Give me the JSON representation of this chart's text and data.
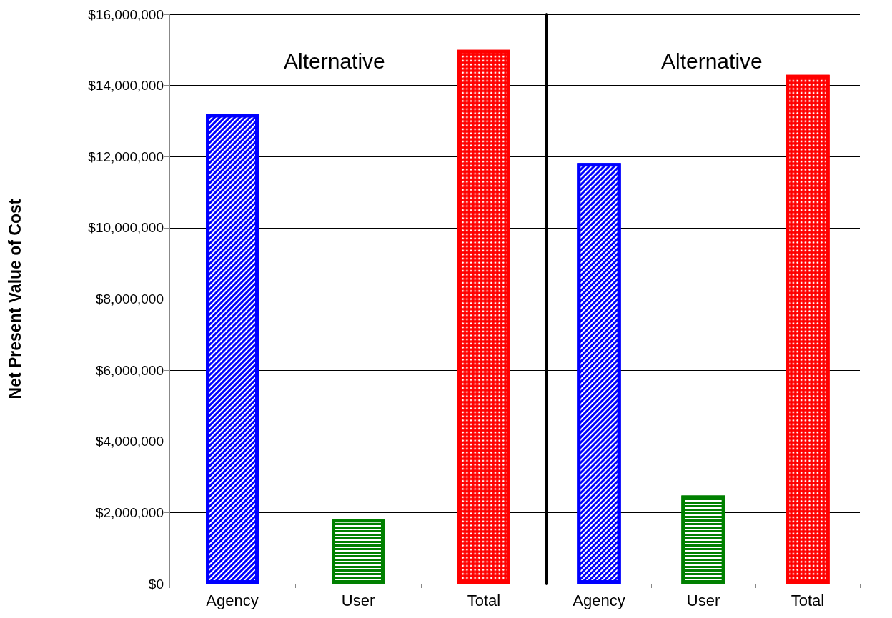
{
  "chart_data": [
    {
      "type": "bar",
      "ylabel": "Net Present Value of Cost",
      "annotations": [
        "Alternative"
      ],
      "categories": [
        "Agency",
        "User",
        "Total"
      ],
      "values": [
        13200000,
        1820000,
        15000000
      ],
      "colors": [
        "#0000ff",
        "#008000",
        "#ff0000"
      ],
      "ylim": [
        0,
        16000000
      ],
      "yticks": [
        {
          "value": 0,
          "label": "$0"
        },
        {
          "value": 2000000,
          "label": "$2,000,000"
        },
        {
          "value": 4000000,
          "label": "$4,000,000"
        },
        {
          "value": 6000000,
          "label": "$6,000,000"
        },
        {
          "value": 8000000,
          "label": "$8,000,000"
        },
        {
          "value": 10000000,
          "label": "$10,000,000"
        },
        {
          "value": 12000000,
          "label": "$12,000,000"
        },
        {
          "value": 14000000,
          "label": "$14,000,000"
        },
        {
          "value": 16000000,
          "label": "$16,000,000"
        }
      ],
      "grid": "y"
    },
    {
      "type": "bar",
      "annotations": [
        "Alternative"
      ],
      "categories": [
        "Agency",
        "User",
        "Total"
      ],
      "values": [
        11820000,
        2480000,
        14300000
      ],
      "colors": [
        "#0000ff",
        "#008000",
        "#ff0000"
      ],
      "ylim": [
        0,
        16000000
      ],
      "yticks": [
        {
          "value": 0,
          "label": null
        },
        {
          "value": 2000000,
          "label": null
        },
        {
          "value": 4000000,
          "label": null
        },
        {
          "value": 6000000,
          "label": null
        },
        {
          "value": 8000000,
          "label": null
        },
        {
          "value": 10000000,
          "label": null
        },
        {
          "value": 12000000,
          "label": null
        },
        {
          "value": 14000000,
          "label": null
        },
        {
          "value": 16000000,
          "label": null
        }
      ],
      "grid": "y",
      "tick_labels": "x"
    }
  ]
}
